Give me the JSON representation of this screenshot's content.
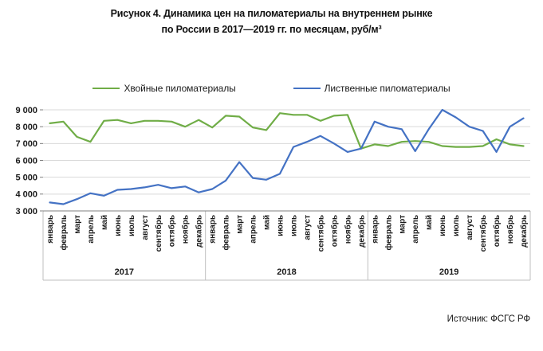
{
  "title": {
    "line1": "Рисунок 4. Динамика цен на пиломатериалы на внутреннем рынке",
    "line2": "по России в 2017—2019 гг. по месяцам, руб/м³"
  },
  "source": "Источник: ФСГС РФ",
  "colors": {
    "coniferous": "#70AD47",
    "deciduous": "#4472C4",
    "gridline": "#D9D9D9",
    "axis": "#7F7F7F",
    "band_line": "#BFBFBF",
    "label_text": "#1a1a1a"
  },
  "chart_data": {
    "type": "line",
    "title": "Динамика цен на пиломатериалы на внутреннем рынке по России в 2017—2019 гг. по месяцам, руб/м³",
    "xlabel": "",
    "ylabel": "руб/м³",
    "ylim": [
      3000,
      9000
    ],
    "ytick_step": 1000,
    "yticks": [
      "3 000",
      "4 000",
      "5 000",
      "6 000",
      "7 000",
      "8 000",
      "9 000"
    ],
    "grid": "horizontal",
    "legend_position": "top",
    "years": [
      "2017",
      "2018",
      "2019"
    ],
    "months": [
      "январь",
      "февраль",
      "март",
      "апрель",
      "май",
      "июнь",
      "июль",
      "август",
      "сентябрь",
      "октябрь",
      "ноябрь",
      "декабрь"
    ],
    "series": [
      {
        "name": "Хвойные пиломатериалы",
        "color": "#70AD47",
        "values": [
          8200,
          8300,
          7400,
          7100,
          8350,
          8400,
          8200,
          8350,
          8350,
          8300,
          8000,
          8400,
          7950,
          8650,
          8600,
          7950,
          7800,
          8800,
          8700,
          8700,
          8350,
          8650,
          8700,
          6700,
          6950,
          6850,
          7100,
          7150,
          7100,
          6850,
          6800,
          6800,
          6850,
          7250,
          6950,
          6850
        ]
      },
      {
        "name": "Лиственные пиломатериалы",
        "color": "#4472C4",
        "values": [
          3500,
          3400,
          3700,
          4050,
          3900,
          4250,
          4300,
          4400,
          4550,
          4350,
          4450,
          4100,
          4300,
          4800,
          5900,
          4950,
          4850,
          5200,
          6800,
          7100,
          7450,
          7000,
          6500,
          6700,
          8300,
          8000,
          7850,
          6550,
          7850,
          9000,
          8550,
          8000,
          7750,
          6500,
          8000,
          8500
        ]
      }
    ]
  }
}
